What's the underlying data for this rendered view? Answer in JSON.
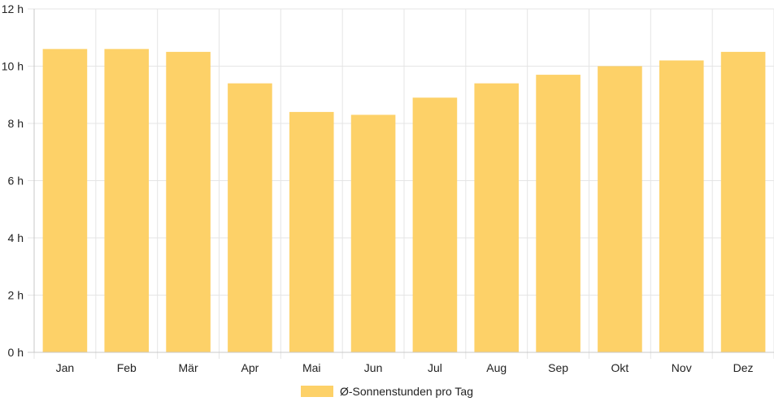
{
  "chart_data": {
    "type": "bar",
    "categories": [
      "Jan",
      "Feb",
      "Mär",
      "Apr",
      "Mai",
      "Jun",
      "Jul",
      "Aug",
      "Sep",
      "Okt",
      "Nov",
      "Dez"
    ],
    "series": [
      {
        "name": "Ø-Sonnenstunden pro Tag",
        "values": [
          10.6,
          10.6,
          10.5,
          9.4,
          8.4,
          8.3,
          8.9,
          9.4,
          9.7,
          10.0,
          10.2,
          10.5
        ]
      }
    ],
    "ylim": [
      0,
      12
    ],
    "yticks": [
      0,
      2,
      4,
      6,
      8,
      10,
      12
    ],
    "y_unit": "h",
    "grid": true,
    "legend_position": "bottom",
    "colors": {
      "bar": "#fdd168",
      "grid": "#e5e5e5",
      "axis": "#c8c8c8",
      "text": "#222222"
    }
  }
}
